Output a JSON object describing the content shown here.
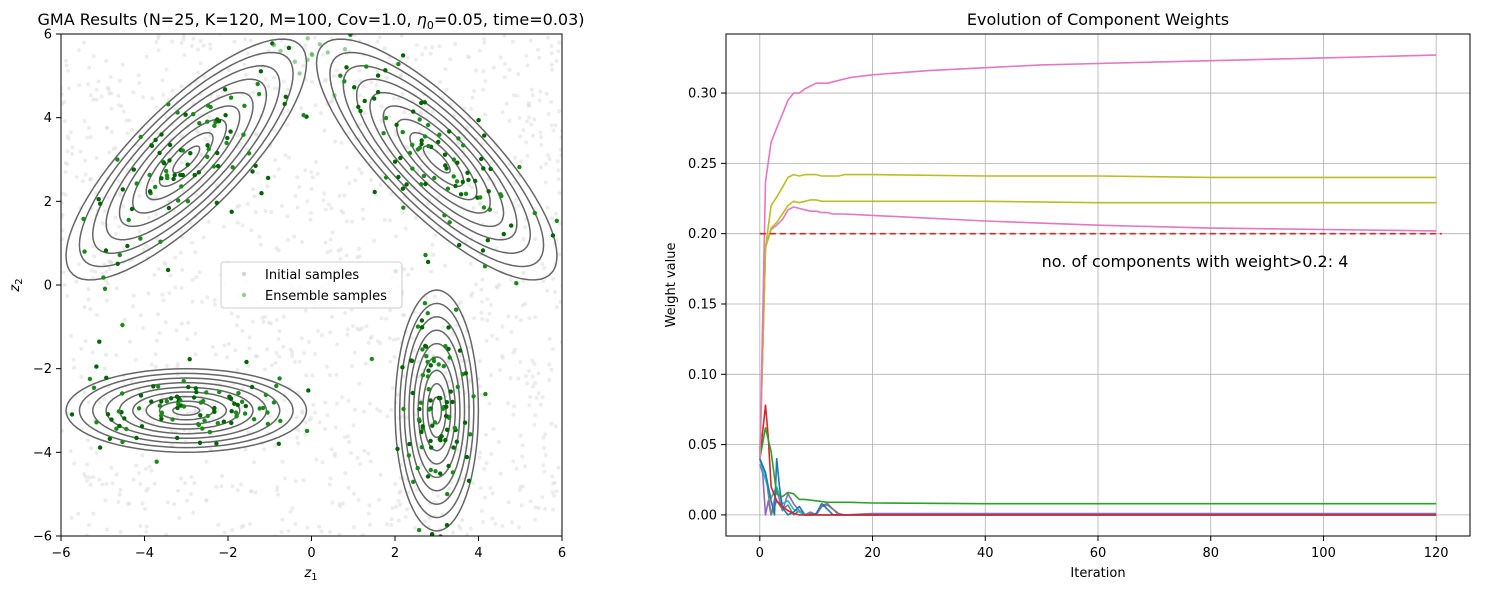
{
  "chart_data": [
    {
      "type": "scatter",
      "title_prefix": "GMA Results (N=25, K=120, M=100, Cov=1.0, ",
      "title_eta": "η",
      "title_eta_sub": "0",
      "title_suffix": "=0.05, time=0.03)",
      "xlabel": "z",
      "xlabel_sub": "1",
      "ylabel": "z",
      "ylabel_sub": "2",
      "xlim": [
        -6,
        6
      ],
      "ylim": [
        -6,
        6
      ],
      "xticks": [
        -6,
        -4,
        -2,
        0,
        2,
        4,
        6
      ],
      "yticks": [
        -6,
        -4,
        -2,
        0,
        2,
        4,
        6
      ],
      "xtick_labels": [
        "−6",
        "−4",
        "−2",
        "0",
        "2",
        "4",
        "6"
      ],
      "ytick_labels": [
        "−6",
        "−4",
        "−2",
        "0",
        "2",
        "4",
        "6"
      ],
      "legend": [
        {
          "label": "Initial samples",
          "color": "#d3d3d3"
        },
        {
          "label": "Ensemble samples",
          "color": "#2ca02c"
        }
      ],
      "contour_color": "#666666",
      "initial_color": "#dcdcdc",
      "ensemble_color": "#1a7a1a",
      "components": [
        {
          "mean": [
            -3,
            3
          ],
          "cov": [
            [
              1.0,
              0.8
            ],
            [
              0.8,
              1.0
            ]
          ]
        },
        {
          "mean": [
            3,
            3
          ],
          "cov": [
            [
              1.0,
              -0.8
            ],
            [
              -0.8,
              1.0
            ]
          ]
        },
        {
          "mean": [
            -3,
            -3
          ],
          "cov": [
            [
              1.0,
              0.0
            ],
            [
              0.0,
              0.12
            ]
          ]
        },
        {
          "mean": [
            3,
            -3
          ],
          "cov": [
            [
              0.12,
              0.0
            ],
            [
              0.0,
              1.0
            ]
          ]
        }
      ],
      "contour_levels": 9
    },
    {
      "type": "line",
      "title": "Evolution of Component Weights",
      "xlabel": "Iteration",
      "ylabel": "Weight value",
      "xlim": [
        -6,
        126
      ],
      "ylim": [
        -0.015,
        0.342
      ],
      "xticks": [
        0,
        20,
        40,
        60,
        80,
        100,
        120
      ],
      "yticks": [
        0.0,
        0.05,
        0.1,
        0.15,
        0.2,
        0.25,
        0.3
      ],
      "xtick_labels": [
        "0",
        "20",
        "40",
        "60",
        "80",
        "100",
        "120"
      ],
      "ytick_labels": [
        "0.00",
        "0.05",
        "0.10",
        "0.15",
        "0.20",
        "0.25",
        "0.30"
      ],
      "threshold": {
        "value": 0.2,
        "x": [
          0,
          121
        ],
        "color": "#d62728"
      },
      "annotation": {
        "text": "no. of components with weight>0.2: 4",
        "x": 50,
        "y": 0.18
      },
      "series": [
        {
          "name": "pink-top",
          "color": "#e377c2",
          "x": [
            0,
            1,
            2,
            3,
            4,
            5,
            6,
            7,
            8,
            9,
            10,
            11,
            12,
            13,
            14,
            15,
            16,
            20,
            30,
            40,
            50,
            60,
            70,
            80,
            90,
            100,
            110,
            120
          ],
          "y": [
            0.04,
            0.237,
            0.265,
            0.275,
            0.285,
            0.295,
            0.3,
            0.3,
            0.303,
            0.305,
            0.307,
            0.307,
            0.307,
            0.308,
            0.309,
            0.31,
            0.311,
            0.313,
            0.316,
            0.318,
            0.32,
            0.321,
            0.322,
            0.323,
            0.324,
            0.325,
            0.326,
            0.327
          ]
        },
        {
          "name": "olive-1",
          "color": "#bcbd22",
          "x": [
            0,
            1,
            2,
            3,
            4,
            5,
            6,
            7,
            8,
            9,
            10,
            11,
            12,
            13,
            14,
            15,
            20,
            40,
            60,
            80,
            100,
            120
          ],
          "y": [
            0.04,
            0.19,
            0.22,
            0.226,
            0.233,
            0.24,
            0.242,
            0.241,
            0.242,
            0.242,
            0.242,
            0.241,
            0.241,
            0.241,
            0.241,
            0.242,
            0.242,
            0.241,
            0.241,
            0.24,
            0.24,
            0.24
          ]
        },
        {
          "name": "olive-2",
          "color": "#bcbd22",
          "x": [
            0,
            1,
            2,
            3,
            4,
            5,
            6,
            7,
            8,
            9,
            10,
            11,
            12,
            13,
            14,
            15,
            20,
            40,
            60,
            80,
            100,
            120
          ],
          "y": [
            0.04,
            0.19,
            0.204,
            0.208,
            0.214,
            0.22,
            0.223,
            0.222,
            0.223,
            0.224,
            0.224,
            0.223,
            0.223,
            0.223,
            0.223,
            0.223,
            0.223,
            0.223,
            0.222,
            0.222,
            0.222,
            0.222
          ]
        },
        {
          "name": "pink-2",
          "color": "#e377c2",
          "x": [
            0,
            1,
            2,
            3,
            4,
            5,
            6,
            7,
            8,
            9,
            10,
            11,
            12,
            13,
            14,
            15,
            20,
            40,
            60,
            80,
            100,
            120
          ],
          "y": [
            0.04,
            0.19,
            0.203,
            0.206,
            0.21,
            0.217,
            0.219,
            0.218,
            0.217,
            0.216,
            0.216,
            0.215,
            0.215,
            0.214,
            0.214,
            0.214,
            0.213,
            0.209,
            0.206,
            0.204,
            0.203,
            0.202
          ]
        },
        {
          "name": "green",
          "color": "#2ca02c",
          "x": [
            0,
            1,
            2,
            3,
            4,
            5,
            6,
            7,
            8,
            10,
            12,
            14,
            16,
            20,
            40,
            60,
            80,
            100,
            120
          ],
          "y": [
            0.04,
            0.062,
            0.045,
            0.015,
            0.013,
            0.016,
            0.015,
            0.011,
            0.011,
            0.01,
            0.009,
            0.009,
            0.009,
            0.0085,
            0.008,
            0.008,
            0.008,
            0.008,
            0.008
          ]
        },
        {
          "name": "red",
          "color": "#d62728",
          "x": [
            0,
            1,
            1.5,
            2,
            3,
            4,
            5,
            6,
            7,
            10,
            20,
            60,
            120
          ],
          "y": [
            0.04,
            0.078,
            0.055,
            0.02,
            0.01,
            0.006,
            0.003,
            0.001,
            0.0,
            0.0,
            0.0,
            0.0,
            0.0
          ]
        },
        {
          "name": "blue",
          "color": "#1f77b4",
          "x": [
            0,
            1,
            2,
            2.6,
            3,
            3.5,
            4,
            5,
            6,
            7,
            8,
            9,
            10,
            11,
            12,
            13,
            14,
            20,
            60,
            120
          ],
          "y": [
            0.04,
            0.03,
            0.01,
            0.0,
            0.04,
            0.02,
            0.005,
            0.0,
            0.002,
            0.006,
            0.0,
            0.0,
            0.001,
            0.008,
            0.004,
            0.0,
            0.0,
            0.0,
            0.0,
            0.0
          ]
        },
        {
          "name": "cyan",
          "color": "#17becf",
          "x": [
            0,
            1,
            2,
            3,
            4,
            5,
            6,
            7,
            8,
            10,
            20,
            60,
            120
          ],
          "y": [
            0.04,
            0.025,
            0.012,
            0.02,
            0.008,
            0.01,
            0.004,
            0.002,
            0.0,
            0.0,
            0.0,
            0.0,
            0.0
          ]
        },
        {
          "name": "gray",
          "color": "#7f7f7f",
          "x": [
            0,
            1,
            2,
            3,
            4,
            5,
            6,
            7,
            8,
            9,
            10,
            11,
            12,
            13,
            14,
            15,
            20,
            60,
            120
          ],
          "y": [
            0.04,
            0.03,
            0.0,
            0.01,
            0.004,
            0.007,
            0.0,
            0.003,
            0.0,
            0.001,
            0.0,
            0.006,
            0.007,
            0.004,
            0.0,
            0.0,
            0.0,
            0.0,
            0.0
          ]
        },
        {
          "name": "purple",
          "color": "#9467bd",
          "x": [
            0,
            0.5,
            1,
            1.5,
            2,
            3,
            4,
            5,
            6,
            7,
            8,
            9,
            10,
            11,
            12,
            13,
            14,
            15,
            20,
            40,
            60,
            80,
            100,
            120
          ],
          "y": [
            0.036,
            0.03,
            0.0,
            0.01,
            0.0,
            0.018,
            0.003,
            0.015,
            0.008,
            0.003,
            0.0,
            0.002,
            0.0,
            0.007,
            0.008,
            0.004,
            0.001,
            0.0,
            0.001,
            0.001,
            0.001,
            0.001,
            0.001,
            0.001
          ]
        }
      ]
    }
  ]
}
